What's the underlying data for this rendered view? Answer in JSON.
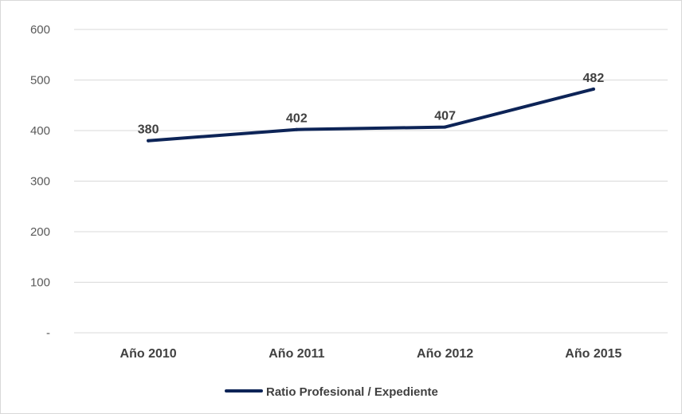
{
  "chart_data": {
    "type": "line",
    "categories": [
      "Año 2010",
      "Año 2011",
      "Año 2012",
      "Año 2015"
    ],
    "series": [
      {
        "name": "Ratio Profesional / Expediente",
        "values": [
          380,
          402,
          407,
          482
        ],
        "color": "#0d2457"
      }
    ],
    "data_labels": [
      "380",
      "402",
      "407",
      "482"
    ],
    "y_ticks": [
      0,
      100,
      200,
      300,
      400,
      500,
      600
    ],
    "y_tick_labels": [
      "-",
      "100",
      "200",
      "300",
      "400",
      "500",
      "600"
    ],
    "ylim": [
      0,
      600
    ],
    "grid": true,
    "legend_position": "bottom",
    "colors": {
      "gridline": "#d9d9d9",
      "line": "#0d2457"
    }
  }
}
